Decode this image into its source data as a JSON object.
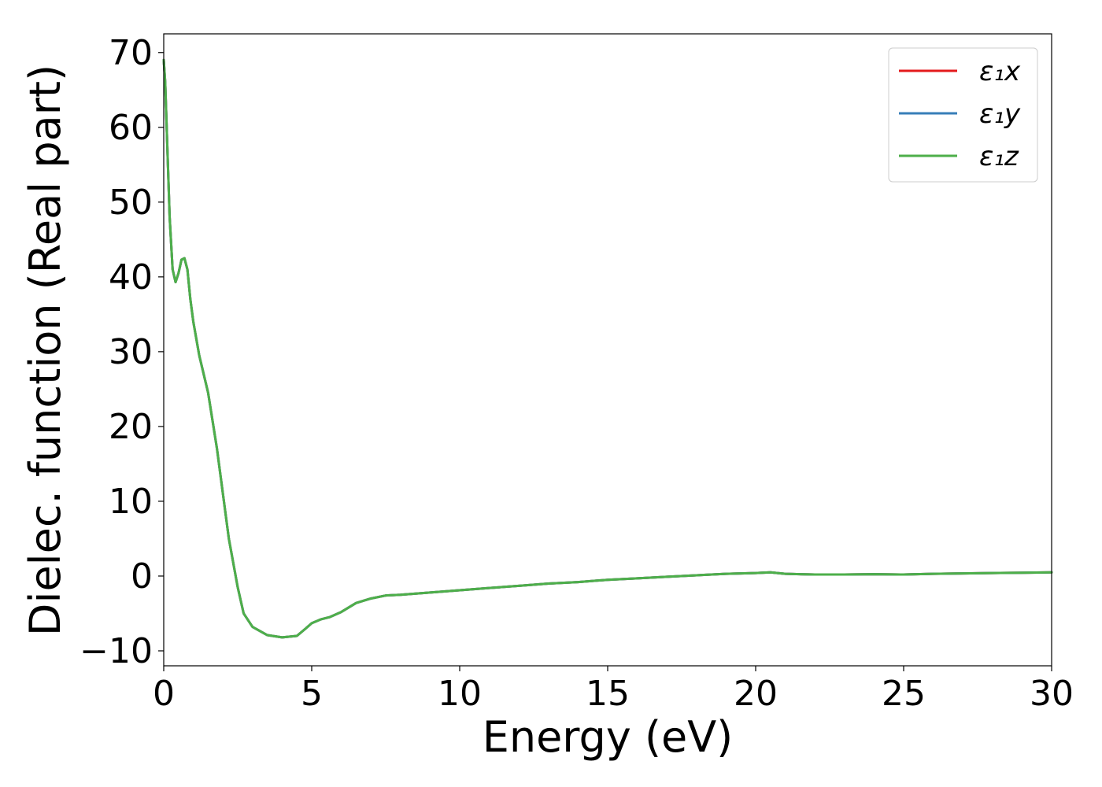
{
  "chart_data": {
    "type": "line",
    "title": "",
    "xlabel": "Energy (eV)",
    "ylabel": "Dielec. function (Real part)",
    "xlim": [
      0,
      30
    ],
    "ylim": [
      -12,
      72.5
    ],
    "xticks": [
      0,
      5,
      10,
      15,
      20,
      25,
      30
    ],
    "xtick_labels": [
      "0",
      "5",
      "10",
      "15",
      "20",
      "25",
      "30"
    ],
    "yticks": [
      -10,
      0,
      10,
      20,
      30,
      40,
      50,
      60,
      70
    ],
    "ytick_labels": [
      "−10",
      "0",
      "10",
      "20",
      "30",
      "40",
      "50",
      "60",
      "70"
    ],
    "grid": false,
    "legend_position": "top-right",
    "x": [
      0.0,
      0.05,
      0.1,
      0.2,
      0.3,
      0.4,
      0.5,
      0.6,
      0.7,
      0.8,
      0.9,
      1.0,
      1.2,
      1.5,
      1.8,
      2.0,
      2.2,
      2.5,
      2.7,
      3.0,
      3.5,
      4.0,
      4.5,
      4.8,
      5.0,
      5.3,
      5.6,
      6.0,
      6.5,
      7.0,
      7.5,
      8.0,
      9.0,
      10.0,
      11.0,
      12.0,
      13.0,
      14.0,
      15.0,
      16.0,
      17.0,
      18.0,
      19.0,
      20.0,
      20.5,
      21.0,
      22.0,
      23.0,
      24.0,
      25.0,
      26.0,
      27.0,
      28.0,
      29.0,
      30.0
    ],
    "series": [
      {
        "name": "ε₁x",
        "color": "#e41a1c",
        "values": [
          69.0,
          66.0,
          60.0,
          48.0,
          41.0,
          39.3,
          40.5,
          42.3,
          42.5,
          41.0,
          37.0,
          34.0,
          29.5,
          24.5,
          17.0,
          11.0,
          5.0,
          -1.5,
          -5.0,
          -6.8,
          -7.9,
          -8.2,
          -8.0,
          -7.0,
          -6.3,
          -5.8,
          -5.5,
          -4.8,
          -3.6,
          -3.0,
          -2.6,
          -2.5,
          -2.2,
          -1.9,
          -1.6,
          -1.3,
          -1.0,
          -0.8,
          -0.5,
          -0.3,
          -0.1,
          0.1,
          0.3,
          0.4,
          0.5,
          0.3,
          0.2,
          0.2,
          0.25,
          0.2,
          0.3,
          0.35,
          0.4,
          0.45,
          0.5
        ]
      },
      {
        "name": "ε₁y",
        "color": "#377eb8",
        "values": [
          69.0,
          66.0,
          60.0,
          48.0,
          41.0,
          39.3,
          40.5,
          42.3,
          42.5,
          41.0,
          37.0,
          34.0,
          29.5,
          24.5,
          17.0,
          11.0,
          5.0,
          -1.5,
          -5.0,
          -6.8,
          -7.9,
          -8.2,
          -8.0,
          -7.0,
          -6.3,
          -5.8,
          -5.5,
          -4.8,
          -3.6,
          -3.0,
          -2.6,
          -2.5,
          -2.2,
          -1.9,
          -1.6,
          -1.3,
          -1.0,
          -0.8,
          -0.5,
          -0.3,
          -0.1,
          0.1,
          0.3,
          0.4,
          0.5,
          0.3,
          0.2,
          0.2,
          0.25,
          0.2,
          0.3,
          0.35,
          0.4,
          0.45,
          0.5
        ]
      },
      {
        "name": "ε₁z",
        "color": "#4daf4a",
        "values": [
          69.0,
          66.0,
          60.0,
          48.0,
          41.0,
          39.3,
          40.5,
          42.3,
          42.5,
          41.0,
          37.0,
          34.0,
          29.5,
          24.5,
          17.0,
          11.0,
          5.0,
          -1.5,
          -5.0,
          -6.8,
          -7.9,
          -8.2,
          -8.0,
          -7.0,
          -6.3,
          -5.8,
          -5.5,
          -4.8,
          -3.6,
          -3.0,
          -2.6,
          -2.5,
          -2.2,
          -1.9,
          -1.6,
          -1.3,
          -1.0,
          -0.8,
          -0.5,
          -0.3,
          -0.1,
          0.1,
          0.3,
          0.4,
          0.5,
          0.3,
          0.2,
          0.2,
          0.25,
          0.2,
          0.3,
          0.35,
          0.4,
          0.45,
          0.5
        ]
      }
    ]
  }
}
